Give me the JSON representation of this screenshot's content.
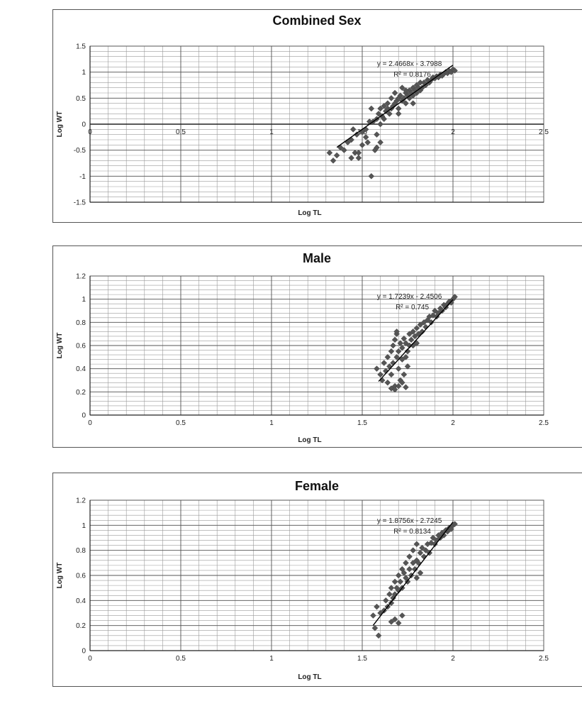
{
  "chart_data": [
    {
      "type": "scatter",
      "title": "Combined Sex",
      "xlabel": "Log TL",
      "ylabel": "Log WT",
      "xlim": [
        0,
        2.5
      ],
      "ylim": [
        -1.5,
        1.5
      ],
      "x_ticks": [
        "0",
        "0.5",
        "1",
        "1.5",
        "2",
        "2.5"
      ],
      "y_ticks": [
        "1.5",
        "1",
        "0.5",
        "0",
        "-0.5",
        "-1",
        "-1.5"
      ],
      "x_ticks_on_zero_line": true,
      "equation": "y = 2.4668x - 3.7988",
      "r_squared": "R² = 0.8176",
      "trendline": {
        "slope": 2.4668,
        "intercept": -3.7988,
        "x_range": [
          1.36,
          2.0
        ]
      },
      "grid": true,
      "series": [
        {
          "x": [
            1.32,
            1.34,
            1.36,
            1.38,
            1.4,
            1.42,
            1.44,
            1.45,
            1.46,
            1.47,
            1.48,
            1.5,
            1.5,
            1.52,
            1.53,
            1.54,
            1.55,
            1.56,
            1.57,
            1.58,
            1.58,
            1.59,
            1.6,
            1.6,
            1.61,
            1.62,
            1.62,
            1.63,
            1.64,
            1.64,
            1.65,
            1.66,
            1.66,
            1.67,
            1.68,
            1.68,
            1.69,
            1.7,
            1.7,
            1.71,
            1.72,
            1.72,
            1.73,
            1.74,
            1.74,
            1.75,
            1.76,
            1.76,
            1.77,
            1.78,
            1.78,
            1.79,
            1.8,
            1.8,
            1.81,
            1.82,
            1.82,
            1.83,
            1.84,
            1.85,
            1.86,
            1.87,
            1.88,
            1.89,
            1.9,
            1.91,
            1.92,
            1.93,
            1.94,
            1.95,
            1.96,
            1.97,
            1.98,
            1.99,
            2.0,
            2.01,
            1.52,
            1.55,
            1.6,
            1.7,
            1.74,
            1.78,
            1.58,
            1.48,
            1.44
          ],
          "y": [
            -0.55,
            -0.7,
            -0.6,
            -0.45,
            -0.5,
            -0.35,
            -0.65,
            -0.1,
            -0.55,
            -0.2,
            -0.65,
            -0.15,
            -0.4,
            -0.1,
            -0.35,
            0.05,
            -1.0,
            0.05,
            -0.5,
            0.1,
            -0.2,
            0.2,
            0.0,
            0.3,
            0.15,
            0.1,
            0.35,
            0.25,
            0.3,
            0.4,
            0.2,
            0.3,
            0.5,
            0.35,
            0.4,
            0.6,
            0.45,
            0.3,
            0.5,
            0.55,
            0.45,
            0.7,
            0.5,
            0.6,
            0.4,
            0.55,
            0.65,
            0.5,
            0.6,
            0.7,
            0.55,
            0.65,
            0.6,
            0.75,
            0.7,
            0.65,
            0.8,
            0.7,
            0.8,
            0.75,
            0.85,
            0.8,
            0.85,
            0.9,
            0.88,
            0.92,
            0.9,
            0.95,
            0.93,
            0.97,
            1.0,
            0.98,
            1.02,
            1.0,
            1.05,
            1.03,
            -0.25,
            0.3,
            -0.35,
            0.2,
            0.65,
            0.4,
            -0.45,
            -0.55,
            -0.3
          ]
        }
      ]
    },
    {
      "type": "scatter",
      "title": "Male",
      "xlabel": "Log TL",
      "ylabel": "Log WT",
      "xlim": [
        0,
        2.5
      ],
      "ylim": [
        0,
        1.2
      ],
      "x_ticks": [
        "0",
        "0.5",
        "1",
        "1.5",
        "2",
        "2.5"
      ],
      "y_ticks": [
        "1.2",
        "1",
        "0.8",
        "0.6",
        "0.4",
        "0.2",
        "0"
      ],
      "x_ticks_on_zero_line": false,
      "equation": "y = 1.7239x - 2.4506",
      "r_squared": "R² = 0.745",
      "trendline": {
        "slope": 1.7239,
        "intercept": -2.4506,
        "x_range": [
          1.59,
          2.0
        ]
      },
      "grid": true,
      "series": [
        {
          "x": [
            1.58,
            1.6,
            1.61,
            1.62,
            1.63,
            1.64,
            1.64,
            1.65,
            1.66,
            1.66,
            1.67,
            1.67,
            1.68,
            1.68,
            1.69,
            1.69,
            1.7,
            1.7,
            1.71,
            1.71,
            1.72,
            1.72,
            1.73,
            1.73,
            1.74,
            1.74,
            1.75,
            1.75,
            1.76,
            1.76,
            1.77,
            1.78,
            1.78,
            1.79,
            1.8,
            1.8,
            1.81,
            1.82,
            1.83,
            1.84,
            1.85,
            1.86,
            1.87,
            1.88,
            1.89,
            1.9,
            1.91,
            1.92,
            1.93,
            1.94,
            1.95,
            1.96,
            1.97,
            1.98,
            1.99,
            2.0,
            2.01,
            1.66,
            1.68,
            1.7,
            1.72,
            1.74,
            1.69
          ],
          "y": [
            0.4,
            0.35,
            0.3,
            0.45,
            0.38,
            0.5,
            0.28,
            0.42,
            0.55,
            0.35,
            0.6,
            0.45,
            0.65,
            0.25,
            0.5,
            0.7,
            0.4,
            0.55,
            0.62,
            0.3,
            0.48,
            0.58,
            0.35,
            0.66,
            0.5,
            0.62,
            0.55,
            0.42,
            0.6,
            0.7,
            0.65,
            0.72,
            0.6,
            0.68,
            0.75,
            0.62,
            0.7,
            0.78,
            0.72,
            0.8,
            0.76,
            0.82,
            0.85,
            0.8,
            0.86,
            0.9,
            0.85,
            0.88,
            0.92,
            0.9,
            0.95,
            0.93,
            0.96,
            0.98,
            0.97,
            1.0,
            1.02,
            0.23,
            0.22,
            0.25,
            0.28,
            0.24,
            0.72
          ]
        }
      ]
    },
    {
      "type": "scatter",
      "title": "Female",
      "xlabel": "Log TL",
      "ylabel": "Log WT",
      "xlim": [
        0,
        2.5
      ],
      "ylim": [
        0,
        1.2
      ],
      "x_ticks": [
        "0",
        "0.5",
        "1",
        "1.5",
        "2",
        "2.5"
      ],
      "y_ticks": [
        "1.2",
        "1",
        "0.8",
        "0.6",
        "0.4",
        "0.2",
        "0"
      ],
      "x_ticks_on_zero_line": false,
      "equation": "y = 1.8756x - 2.7245",
      "r_squared": "R² = 0.8134",
      "trendline": {
        "slope": 1.8756,
        "intercept": -2.7245,
        "x_range": [
          1.56,
          2.0
        ]
      },
      "grid": true,
      "series": [
        {
          "x": [
            1.56,
            1.57,
            1.58,
            1.59,
            1.6,
            1.62,
            1.63,
            1.64,
            1.65,
            1.66,
            1.66,
            1.67,
            1.68,
            1.68,
            1.69,
            1.7,
            1.7,
            1.71,
            1.72,
            1.72,
            1.73,
            1.74,
            1.74,
            1.75,
            1.76,
            1.76,
            1.77,
            1.78,
            1.78,
            1.79,
            1.8,
            1.8,
            1.81,
            1.82,
            1.82,
            1.83,
            1.84,
            1.85,
            1.86,
            1.87,
            1.88,
            1.89,
            1.9,
            1.91,
            1.92,
            1.93,
            1.94,
            1.95,
            1.96,
            1.97,
            1.98,
            1.99,
            2.0,
            2.01,
            1.68,
            1.7,
            1.72,
            1.66,
            1.8,
            1.82
          ],
          "y": [
            0.28,
            0.18,
            0.35,
            0.12,
            0.3,
            0.32,
            0.4,
            0.35,
            0.45,
            0.38,
            0.5,
            0.42,
            0.55,
            0.45,
            0.5,
            0.6,
            0.48,
            0.55,
            0.65,
            0.5,
            0.62,
            0.58,
            0.7,
            0.55,
            0.65,
            0.75,
            0.6,
            0.7,
            0.8,
            0.65,
            0.72,
            0.85,
            0.7,
            0.78,
            0.62,
            0.82,
            0.75,
            0.8,
            0.85,
            0.78,
            0.86,
            0.9,
            0.85,
            0.88,
            0.92,
            0.9,
            0.94,
            0.92,
            0.96,
            0.95,
            0.98,
            0.97,
            1.0,
            1.01,
            0.25,
            0.22,
            0.28,
            0.23,
            0.58,
            0.62
          ]
        }
      ]
    }
  ]
}
